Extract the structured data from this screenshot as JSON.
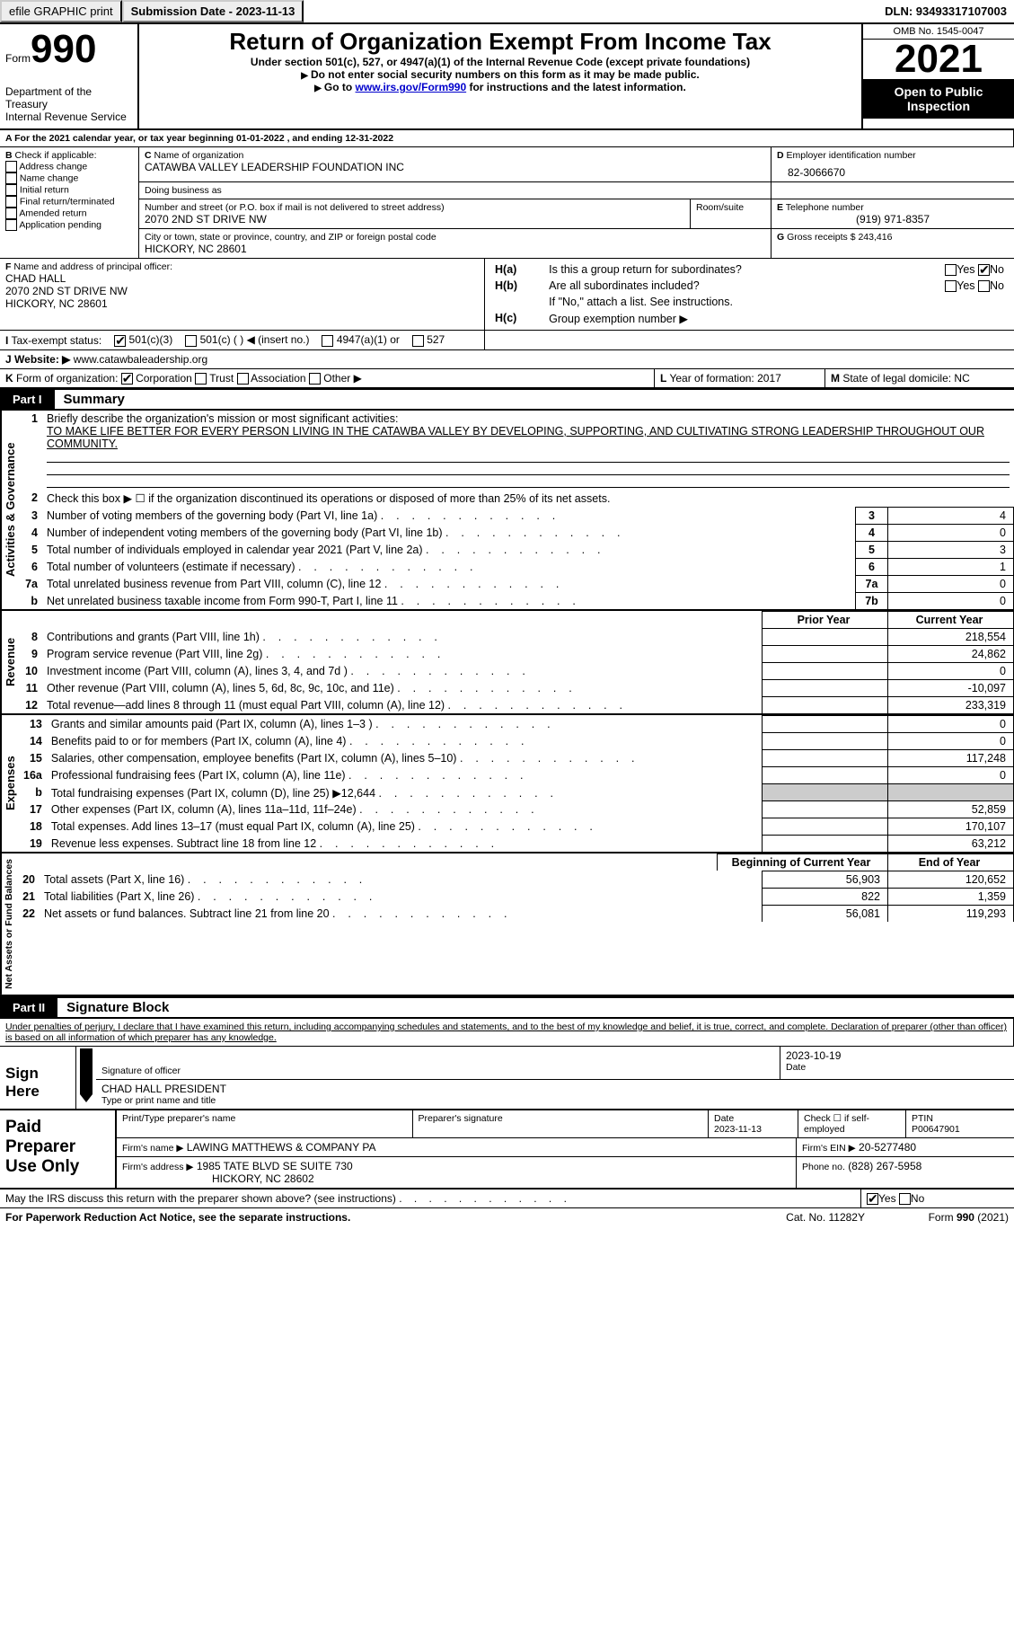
{
  "top": {
    "efile": "efile GRAPHIC print",
    "submission_label": "Submission Date - 2023-11-13",
    "dln_label": "DLN: 93493317107003"
  },
  "header": {
    "form_word": "Form",
    "form_num": "990",
    "dept": "Department of the Treasury",
    "irs": "Internal Revenue Service",
    "title": "Return of Organization Exempt From Income Tax",
    "sub1": "Under section 501(c), 527, or 4947(a)(1) of the Internal Revenue Code (except private foundations)",
    "sub2": "Do not enter social security numbers on this form as it may be made public.",
    "sub3a": "Go to ",
    "sub3_link": "www.irs.gov/Form990",
    "sub3b": " for instructions and the latest information.",
    "omb": "OMB No. 1545-0047",
    "year": "2021",
    "pub": "Open to Public Inspection"
  },
  "periodA": "For the 2021 calendar year, or tax year beginning 01-01-2022   , and ending 12-31-2022",
  "boxB": {
    "label": "Check if applicable:",
    "items": [
      "Address change",
      "Name change",
      "Initial return",
      "Final return/terminated",
      "Amended return",
      "Application pending"
    ]
  },
  "boxC": {
    "name_label": "Name of organization",
    "name": "CATAWBA VALLEY LEADERSHIP FOUNDATION INC",
    "dba_label": "Doing business as",
    "addr_label": "Number and street (or P.O. box if mail is not delivered to street address)",
    "room_label": "Room/suite",
    "addr": "2070 2ND ST DRIVE NW",
    "city_label": "City or town, state or province, country, and ZIP or foreign postal code",
    "city": "HICKORY, NC  28601"
  },
  "boxD": {
    "label": "Employer identification number",
    "val": "82-3066670"
  },
  "boxE": {
    "label": "Telephone number",
    "val": "(919) 971-8357"
  },
  "boxG": {
    "label": "Gross receipts $",
    "val": "243,416"
  },
  "boxF": {
    "label": "Name and address of principal officer:",
    "name": "CHAD HALL",
    "addr": "2070 2ND ST DRIVE NW",
    "city": "HICKORY, NC  28601"
  },
  "boxH": {
    "ha": "Is this a group return for subordinates?",
    "hb": "Are all subordinates included?",
    "hb_note": "If \"No,\" attach a list. See instructions.",
    "hc": "Group exemption number ▶",
    "yes": "Yes",
    "no": "No"
  },
  "taxI": {
    "label": "Tax-exempt status:",
    "opts": [
      "501(c)(3)",
      "501(c) (   ) ◀ (insert no.)",
      "4947(a)(1) or",
      "527"
    ]
  },
  "boxJ": {
    "label": "Website: ▶",
    "val": "www.catawbaleadership.org"
  },
  "boxK": {
    "label": "Form of organization:",
    "opts": [
      "Corporation",
      "Trust",
      "Association",
      "Other ▶"
    ]
  },
  "boxL": {
    "label": "Year of formation:",
    "val": "2017"
  },
  "boxM": {
    "label": "State of legal domicile:",
    "val": "NC"
  },
  "part1": {
    "label": "Part I",
    "title": "Summary"
  },
  "s1": {
    "label": "Activities & Governance",
    "l1": "Briefly describe the organization's mission or most significant activities:",
    "l1v": "TO MAKE LIFE BETTER FOR EVERY PERSON LIVING IN THE CATAWBA VALLEY BY DEVELOPING, SUPPORTING, AND CULTIVATING STRONG LEADERSHIP THROUGHOUT OUR COMMUNITY.",
    "l2": "Check this box ▶ ☐  if the organization discontinued its operations or disposed of more than 25% of its net assets.",
    "rows": [
      {
        "n": "3",
        "t": "Number of voting members of the governing body (Part VI, line 1a)",
        "b": "3",
        "v": "4"
      },
      {
        "n": "4",
        "t": "Number of independent voting members of the governing body (Part VI, line 1b)",
        "b": "4",
        "v": "0"
      },
      {
        "n": "5",
        "t": "Total number of individuals employed in calendar year 2021 (Part V, line 2a)",
        "b": "5",
        "v": "3"
      },
      {
        "n": "6",
        "t": "Total number of volunteers (estimate if necessary)",
        "b": "6",
        "v": "1"
      },
      {
        "n": "7a",
        "t": "Total unrelated business revenue from Part VIII, column (C), line 12",
        "b": "7a",
        "v": "0"
      },
      {
        "n": "b",
        "t": "Net unrelated business taxable income from Form 990-T, Part I, line 11",
        "b": "7b",
        "v": "0"
      }
    ]
  },
  "s2": {
    "label": "Revenue",
    "hdr_prior": "Prior Year",
    "hdr_curr": "Current Year",
    "rows": [
      {
        "n": "8",
        "t": "Contributions and grants (Part VIII, line 1h)",
        "p": "",
        "c": "218,554"
      },
      {
        "n": "9",
        "t": "Program service revenue (Part VIII, line 2g)",
        "p": "",
        "c": "24,862"
      },
      {
        "n": "10",
        "t": "Investment income (Part VIII, column (A), lines 3, 4, and 7d )",
        "p": "",
        "c": "0"
      },
      {
        "n": "11",
        "t": "Other revenue (Part VIII, column (A), lines 5, 6d, 8c, 9c, 10c, and 11e)",
        "p": "",
        "c": "-10,097"
      },
      {
        "n": "12",
        "t": "Total revenue—add lines 8 through 11 (must equal Part VIII, column (A), line 12)",
        "p": "",
        "c": "233,319"
      }
    ]
  },
  "s3": {
    "label": "Expenses",
    "rows": [
      {
        "n": "13",
        "t": "Grants and similar amounts paid (Part IX, column (A), lines 1–3 )",
        "p": "",
        "c": "0"
      },
      {
        "n": "14",
        "t": "Benefits paid to or for members (Part IX, column (A), line 4)",
        "p": "",
        "c": "0"
      },
      {
        "n": "15",
        "t": "Salaries, other compensation, employee benefits (Part IX, column (A), lines 5–10)",
        "p": "",
        "c": "117,248"
      },
      {
        "n": "16a",
        "t": "Professional fundraising fees (Part IX, column (A), line 11e)",
        "p": "",
        "c": "0"
      },
      {
        "n": "b",
        "t": "Total fundraising expenses (Part IX, column (D), line 25) ▶12,644",
        "shade": true
      },
      {
        "n": "17",
        "t": "Other expenses (Part IX, column (A), lines 11a–11d, 11f–24e)",
        "p": "",
        "c": "52,859"
      },
      {
        "n": "18",
        "t": "Total expenses. Add lines 13–17 (must equal Part IX, column (A), line 25)",
        "p": "",
        "c": "170,107"
      },
      {
        "n": "19",
        "t": "Revenue less expenses. Subtract line 18 from line 12",
        "p": "",
        "c": "63,212"
      }
    ]
  },
  "s4": {
    "label": "Net Assets or Fund Balances",
    "hdr_beg": "Beginning of Current Year",
    "hdr_end": "End of Year",
    "rows": [
      {
        "n": "20",
        "t": "Total assets (Part X, line 16)",
        "p": "56,903",
        "c": "120,652"
      },
      {
        "n": "21",
        "t": "Total liabilities (Part X, line 26)",
        "p": "822",
        "c": "1,359"
      },
      {
        "n": "22",
        "t": "Net assets or fund balances. Subtract line 21 from line 20",
        "p": "56,081",
        "c": "119,293"
      }
    ]
  },
  "part2": {
    "label": "Part II",
    "title": "Signature Block"
  },
  "sig": {
    "decl": "Under penalties of perjury, I declare that I have examined this return, including accompanying schedules and statements, and to the best of my knowledge and belief, it is true, correct, and complete. Declaration of preparer (other than officer) is based on all information of which preparer has any knowledge.",
    "sign_here": "Sign Here",
    "sig_officer": "Signature of officer",
    "date": "Date",
    "date_v": "2023-10-19",
    "name_v": "CHAD HALL  PRESIDENT",
    "type_name": "Type or print name and title",
    "paid": "Paid Preparer Use Only",
    "prep_name": "Print/Type preparer's name",
    "prep_sig": "Preparer's signature",
    "prep_date": "Date",
    "prep_date_v": "2023-11-13",
    "check_self": "Check ☐ if self-employed",
    "ptin": "PTIN",
    "ptin_v": "P00647901",
    "firm_name": "Firm's name    ▶",
    "firm_name_v": "LAWING MATTHEWS & COMPANY PA",
    "firm_ein": "Firm's EIN ▶",
    "firm_ein_v": "20-5277480",
    "firm_addr": "Firm's address ▶",
    "firm_addr_v": "1985 TATE BLVD SE SUITE 730",
    "firm_city": "HICKORY, NC  28602",
    "phone": "Phone no.",
    "phone_v": "(828) 267-5958",
    "discuss": "May the IRS discuss this return with the preparer shown above? (see instructions)",
    "yes": "Yes",
    "no": "No"
  },
  "footer": {
    "pra": "For Paperwork Reduction Act Notice, see the separate instructions.",
    "cat": "Cat. No. 11282Y",
    "form": "Form 990 (2021)"
  }
}
